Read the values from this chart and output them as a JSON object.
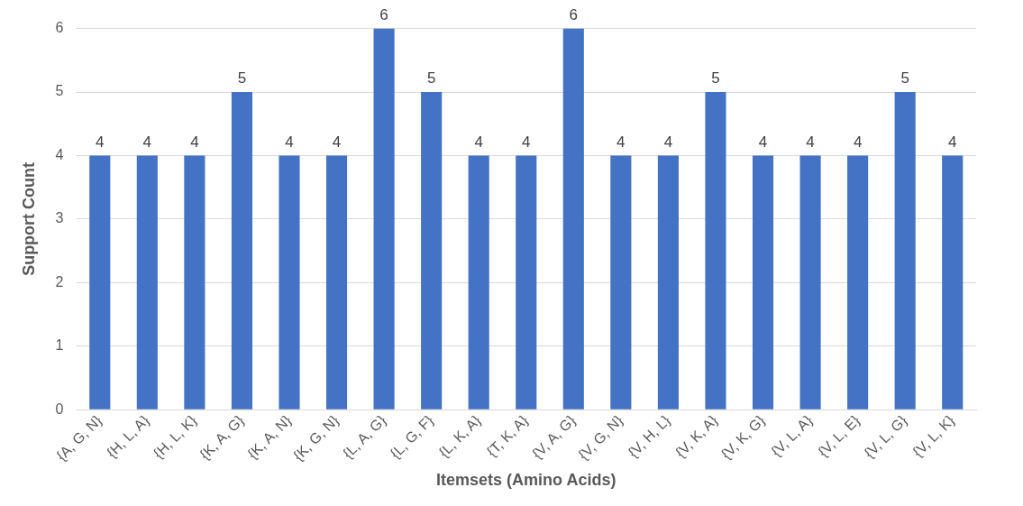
{
  "chart_data": {
    "type": "bar",
    "xlabel": "Itemsets (Amino Acids)",
    "ylabel": "Support Count",
    "categories": [
      "{A, G, N}",
      "{H, L, A}",
      "{H, L, K}",
      "{K, A, G}",
      "{K, A, N}",
      "{K, G, N}",
      "{L, A, G}",
      "{L, G, F}",
      "{L, K, A}",
      "{T, K, A}",
      "{V, A, G}",
      "{V, G, N}",
      "{V, H, L}",
      "{V, K, A}",
      "{V, K, G}",
      "{V, L, A}",
      "{V, L, E}",
      "{V, L, G}",
      "{V, L, K}"
    ],
    "values": [
      4,
      4,
      4,
      5,
      4,
      4,
      6,
      5,
      4,
      4,
      6,
      4,
      4,
      5,
      4,
      4,
      4,
      5,
      4
    ],
    "color": "#4472c4",
    "ylim": [
      0,
      6
    ],
    "yticks": [
      0,
      1,
      2,
      3,
      4,
      5,
      6
    ],
    "grid": "y",
    "data_labels": true
  }
}
